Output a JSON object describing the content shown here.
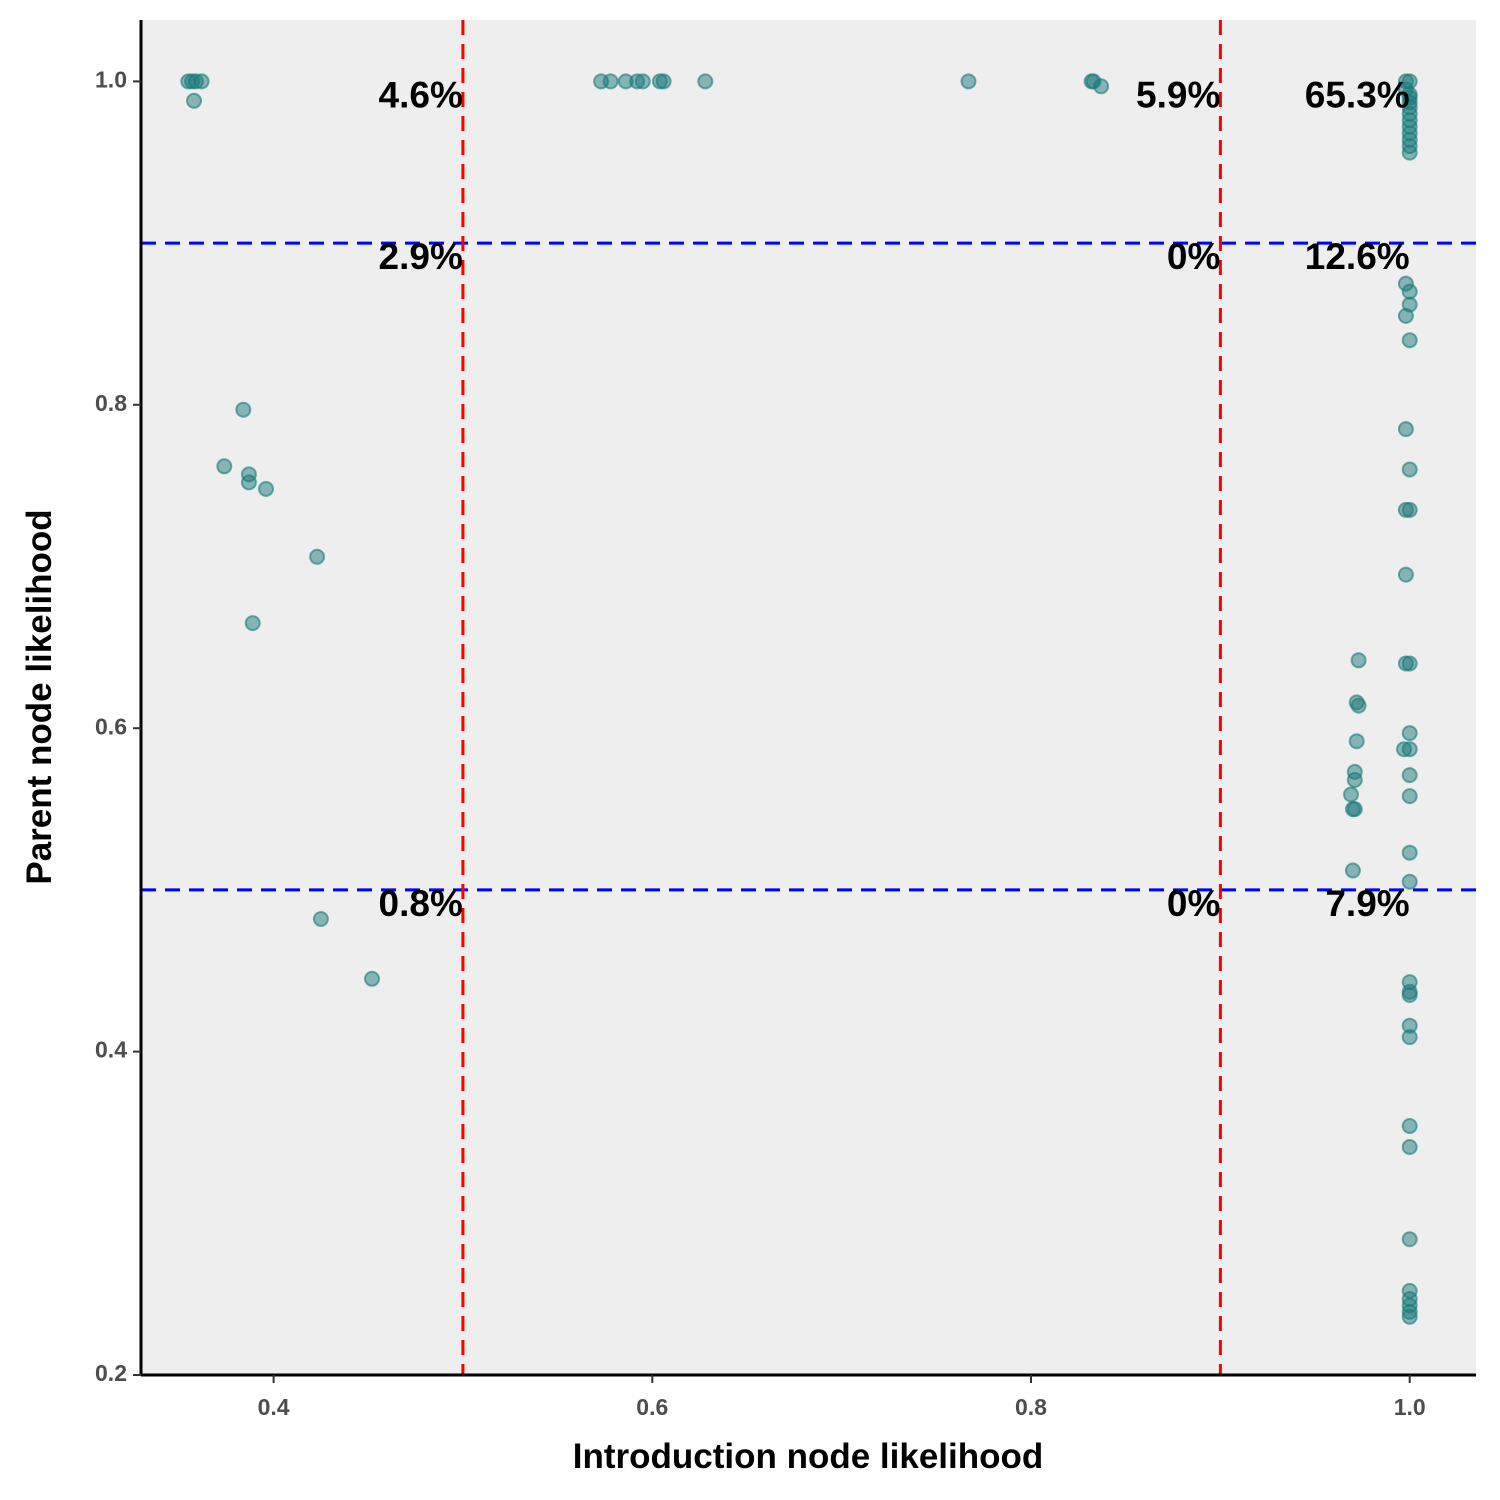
{
  "chart_data": {
    "type": "scatter",
    "title": "",
    "xlabel": "Introduction node likelihood",
    "ylabel": "Parent node likelihood",
    "xlim": [
      0.33,
      1.035
    ],
    "ylim": [
      0.2,
      1.038
    ],
    "x_ticks": [
      0.4,
      0.6,
      0.8,
      1.0
    ],
    "x_tick_labels": [
      "0.4",
      "0.6",
      "0.8",
      "1.0"
    ],
    "y_ticks": [
      0.2,
      0.4,
      0.6,
      0.8,
      1.0
    ],
    "y_tick_labels": [
      "0.2",
      "0.4",
      "0.6",
      "0.8",
      "1.0"
    ],
    "grid": false,
    "background": "#eeeeee",
    "point_color": "#1a7a7a",
    "vlines": [
      0.5,
      0.9
    ],
    "vline_color": "#ff0000",
    "hlines": [
      0.5,
      0.9
    ],
    "hline_color": "#0000ff",
    "percent_labels": [
      {
        "text": "4.6%",
        "x": 0.5,
        "y": 0.99
      },
      {
        "text": "5.9%",
        "x": 0.9,
        "y": 0.99
      },
      {
        "text": "65.3%",
        "x": 1.0,
        "y": 0.99
      },
      {
        "text": "2.9%",
        "x": 0.5,
        "y": 0.89
      },
      {
        "text": "0%",
        "x": 0.9,
        "y": 0.89
      },
      {
        "text": "12.6%",
        "x": 1.0,
        "y": 0.89
      },
      {
        "text": "0.8%",
        "x": 0.5,
        "y": 0.49
      },
      {
        "text": "0%",
        "x": 0.9,
        "y": 0.49
      },
      {
        "text": "7.9%",
        "x": 1.0,
        "y": 0.49
      }
    ],
    "points": [
      [
        0.355,
        1.0
      ],
      [
        0.357,
        1.0
      ],
      [
        0.359,
        1.0
      ],
      [
        0.362,
        1.0
      ],
      [
        0.358,
        0.988
      ],
      [
        0.573,
        1.0
      ],
      [
        0.578,
        1.0
      ],
      [
        0.586,
        1.0
      ],
      [
        0.592,
        1.0
      ],
      [
        0.595,
        1.0
      ],
      [
        0.604,
        1.0
      ],
      [
        0.606,
        1.0
      ],
      [
        0.628,
        1.0
      ],
      [
        0.767,
        1.0
      ],
      [
        0.832,
        1.0
      ],
      [
        0.833,
        1.0
      ],
      [
        0.837,
        0.997
      ],
      [
        0.384,
        0.797
      ],
      [
        0.374,
        0.762
      ],
      [
        0.387,
        0.757
      ],
      [
        0.387,
        0.752
      ],
      [
        0.396,
        0.748
      ],
      [
        0.423,
        0.706
      ],
      [
        0.389,
        0.665
      ],
      [
        0.425,
        0.482
      ],
      [
        0.452,
        0.445
      ],
      [
        0.998,
        1.0
      ],
      [
        1.0,
        1.0
      ],
      [
        0.998,
        0.995
      ],
      [
        1.0,
        0.992
      ],
      [
        1.0,
        0.99
      ],
      [
        1.0,
        0.987
      ],
      [
        1.0,
        0.984
      ],
      [
        1.0,
        0.98
      ],
      [
        1.0,
        0.976
      ],
      [
        1.0,
        0.972
      ],
      [
        1.0,
        0.968
      ],
      [
        1.0,
        0.964
      ],
      [
        1.0,
        0.96
      ],
      [
        1.0,
        0.956
      ],
      [
        0.998,
        0.875
      ],
      [
        1.0,
        0.87
      ],
      [
        1.0,
        0.862
      ],
      [
        0.998,
        0.855
      ],
      [
        1.0,
        0.84
      ],
      [
        0.998,
        0.785
      ],
      [
        1.0,
        0.76
      ],
      [
        0.998,
        0.735
      ],
      [
        1.0,
        0.735
      ],
      [
        0.998,
        0.695
      ],
      [
        1.0,
        0.64
      ],
      [
        0.998,
        0.64
      ],
      [
        1.0,
        0.597
      ],
      [
        0.997,
        0.587
      ],
      [
        1.0,
        0.587
      ],
      [
        1.0,
        0.571
      ],
      [
        1.0,
        0.558
      ],
      [
        1.0,
        0.523
      ],
      [
        1.0,
        0.505
      ],
      [
        0.973,
        0.642
      ],
      [
        0.972,
        0.616
      ],
      [
        0.973,
        0.614
      ],
      [
        0.972,
        0.592
      ],
      [
        0.971,
        0.573
      ],
      [
        0.971,
        0.568
      ],
      [
        0.969,
        0.559
      ],
      [
        0.97,
        0.55
      ],
      [
        0.971,
        0.55
      ],
      [
        0.97,
        0.512
      ],
      [
        1.0,
        0.443
      ],
      [
        1.0,
        0.437
      ],
      [
        1.0,
        0.435
      ],
      [
        1.0,
        0.416
      ],
      [
        1.0,
        0.409
      ],
      [
        1.0,
        0.354
      ],
      [
        1.0,
        0.341
      ],
      [
        1.0,
        0.284
      ],
      [
        1.0,
        0.252
      ],
      [
        1.0,
        0.247
      ],
      [
        1.0,
        0.243
      ],
      [
        1.0,
        0.239
      ],
      [
        1.0,
        0.236
      ]
    ]
  }
}
